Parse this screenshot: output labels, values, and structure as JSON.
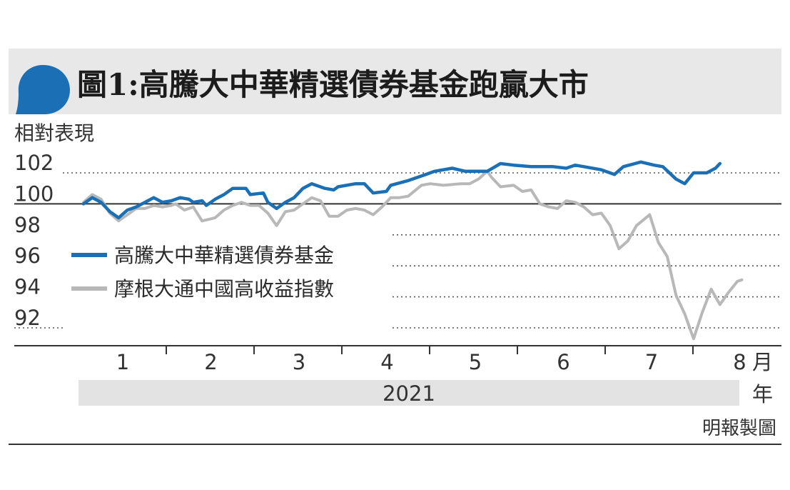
{
  "chart_data": {
    "type": "line",
    "title": "圖1:高騰大中華精選債券基金跑贏大市",
    "ylabel": "相對表現",
    "xlabel": "月",
    "ylim": [
      91,
      103
    ],
    "yticks": [
      102,
      100,
      98,
      96,
      94,
      92
    ],
    "baseline": 100,
    "x_ticks": [
      "1",
      "2",
      "3",
      "4",
      "5",
      "6",
      "7",
      "8"
    ],
    "x_unit": "月",
    "year_label": "2021",
    "year_unit": "年",
    "grid": true,
    "legend_position": "middle-left",
    "credit": "明報製圖",
    "series": [
      {
        "name": "高騰大中華精選債券基金",
        "color": "#1a6fb5",
        "points": [
          [
            0.0,
            100.0
          ],
          [
            0.1,
            100.4
          ],
          [
            0.2,
            100.1
          ],
          [
            0.3,
            99.5
          ],
          [
            0.4,
            99.1
          ],
          [
            0.5,
            99.6
          ],
          [
            0.6,
            99.8
          ],
          [
            0.7,
            100.1
          ],
          [
            0.8,
            100.4
          ],
          [
            0.9,
            100.1
          ],
          [
            1.0,
            100.2
          ],
          [
            1.1,
            100.4
          ],
          [
            1.2,
            100.3
          ],
          [
            1.25,
            100.1
          ],
          [
            1.35,
            100.2
          ],
          [
            1.4,
            99.9
          ],
          [
            1.5,
            100.3
          ],
          [
            1.6,
            100.6
          ],
          [
            1.7,
            101.0
          ],
          [
            1.85,
            101.0
          ],
          [
            1.9,
            100.6
          ],
          [
            2.05,
            100.7
          ],
          [
            2.1,
            100.1
          ],
          [
            2.2,
            99.7
          ],
          [
            2.3,
            100.1
          ],
          [
            2.4,
            100.4
          ],
          [
            2.5,
            101.0
          ],
          [
            2.6,
            101.3
          ],
          [
            2.75,
            101.0
          ],
          [
            2.85,
            100.9
          ],
          [
            2.9,
            101.1
          ],
          [
            3.1,
            101.3
          ],
          [
            3.2,
            101.3
          ],
          [
            3.3,
            100.7
          ],
          [
            3.45,
            100.8
          ],
          [
            3.5,
            101.2
          ],
          [
            3.7,
            101.5
          ],
          [
            3.9,
            101.9
          ],
          [
            4.0,
            102.1
          ],
          [
            4.2,
            102.3
          ],
          [
            4.35,
            102.1
          ],
          [
            4.5,
            102.1
          ],
          [
            4.6,
            102.1
          ],
          [
            4.75,
            102.6
          ],
          [
            4.9,
            102.5
          ],
          [
            5.1,
            102.4
          ],
          [
            5.35,
            102.4
          ],
          [
            5.5,
            102.3
          ],
          [
            5.6,
            102.5
          ],
          [
            5.7,
            102.4
          ],
          [
            5.9,
            102.2
          ],
          [
            6.05,
            101.9
          ],
          [
            6.15,
            102.4
          ],
          [
            6.35,
            102.7
          ],
          [
            6.5,
            102.5
          ],
          [
            6.6,
            102.4
          ],
          [
            6.75,
            101.6
          ],
          [
            6.85,
            101.3
          ],
          [
            6.95,
            102.0
          ],
          [
            7.1,
            102.0
          ],
          [
            7.2,
            102.3
          ],
          [
            7.25,
            102.6
          ]
        ]
      },
      {
        "name": "摩根大通中國高收益指數",
        "color": "#b8b8b8",
        "points": [
          [
            0.0,
            100.1
          ],
          [
            0.1,
            100.6
          ],
          [
            0.2,
            100.3
          ],
          [
            0.3,
            99.4
          ],
          [
            0.4,
            98.9
          ],
          [
            0.5,
            99.3
          ],
          [
            0.6,
            99.7
          ],
          [
            0.7,
            99.7
          ],
          [
            0.8,
            99.9
          ],
          [
            0.9,
            99.8
          ],
          [
            1.0,
            99.9
          ],
          [
            1.05,
            100.0
          ],
          [
            1.15,
            99.6
          ],
          [
            1.25,
            99.8
          ],
          [
            1.35,
            98.9
          ],
          [
            1.5,
            99.1
          ],
          [
            1.6,
            99.6
          ],
          [
            1.7,
            99.9
          ],
          [
            1.8,
            100.1
          ],
          [
            1.9,
            99.9
          ],
          [
            2.0,
            99.9
          ],
          [
            2.1,
            99.4
          ],
          [
            2.2,
            98.6
          ],
          [
            2.3,
            99.5
          ],
          [
            2.4,
            99.6
          ],
          [
            2.5,
            100.0
          ],
          [
            2.6,
            100.4
          ],
          [
            2.7,
            100.2
          ],
          [
            2.8,
            99.2
          ],
          [
            2.9,
            99.2
          ],
          [
            3.0,
            99.6
          ],
          [
            3.1,
            99.7
          ],
          [
            3.2,
            99.6
          ],
          [
            3.3,
            99.3
          ],
          [
            3.4,
            99.8
          ],
          [
            3.5,
            100.4
          ],
          [
            3.6,
            100.4
          ],
          [
            3.7,
            100.5
          ],
          [
            3.85,
            101.2
          ],
          [
            3.95,
            101.3
          ],
          [
            4.1,
            101.2
          ],
          [
            4.3,
            101.3
          ],
          [
            4.4,
            101.3
          ],
          [
            4.5,
            101.6
          ],
          [
            4.6,
            102.1
          ],
          [
            4.65,
            101.7
          ],
          [
            4.75,
            101.1
          ],
          [
            4.9,
            101.2
          ],
          [
            5.0,
            100.8
          ],
          [
            5.1,
            100.9
          ],
          [
            5.2,
            100.0
          ],
          [
            5.3,
            99.8
          ],
          [
            5.4,
            99.7
          ],
          [
            5.5,
            100.2
          ],
          [
            5.6,
            100.1
          ],
          [
            5.7,
            99.8
          ],
          [
            5.8,
            99.3
          ],
          [
            5.9,
            99.4
          ],
          [
            6.0,
            98.6
          ],
          [
            6.1,
            97.1
          ],
          [
            6.2,
            97.6
          ],
          [
            6.3,
            98.6
          ],
          [
            6.45,
            99.3
          ],
          [
            6.55,
            97.5
          ],
          [
            6.65,
            96.6
          ],
          [
            6.75,
            94.1
          ],
          [
            6.85,
            92.9
          ],
          [
            6.95,
            91.3
          ],
          [
            7.05,
            93.0
          ],
          [
            7.15,
            94.5
          ],
          [
            7.25,
            93.5
          ],
          [
            7.35,
            94.3
          ],
          [
            7.45,
            95.0
          ],
          [
            7.5,
            95.1
          ]
        ]
      }
    ]
  }
}
